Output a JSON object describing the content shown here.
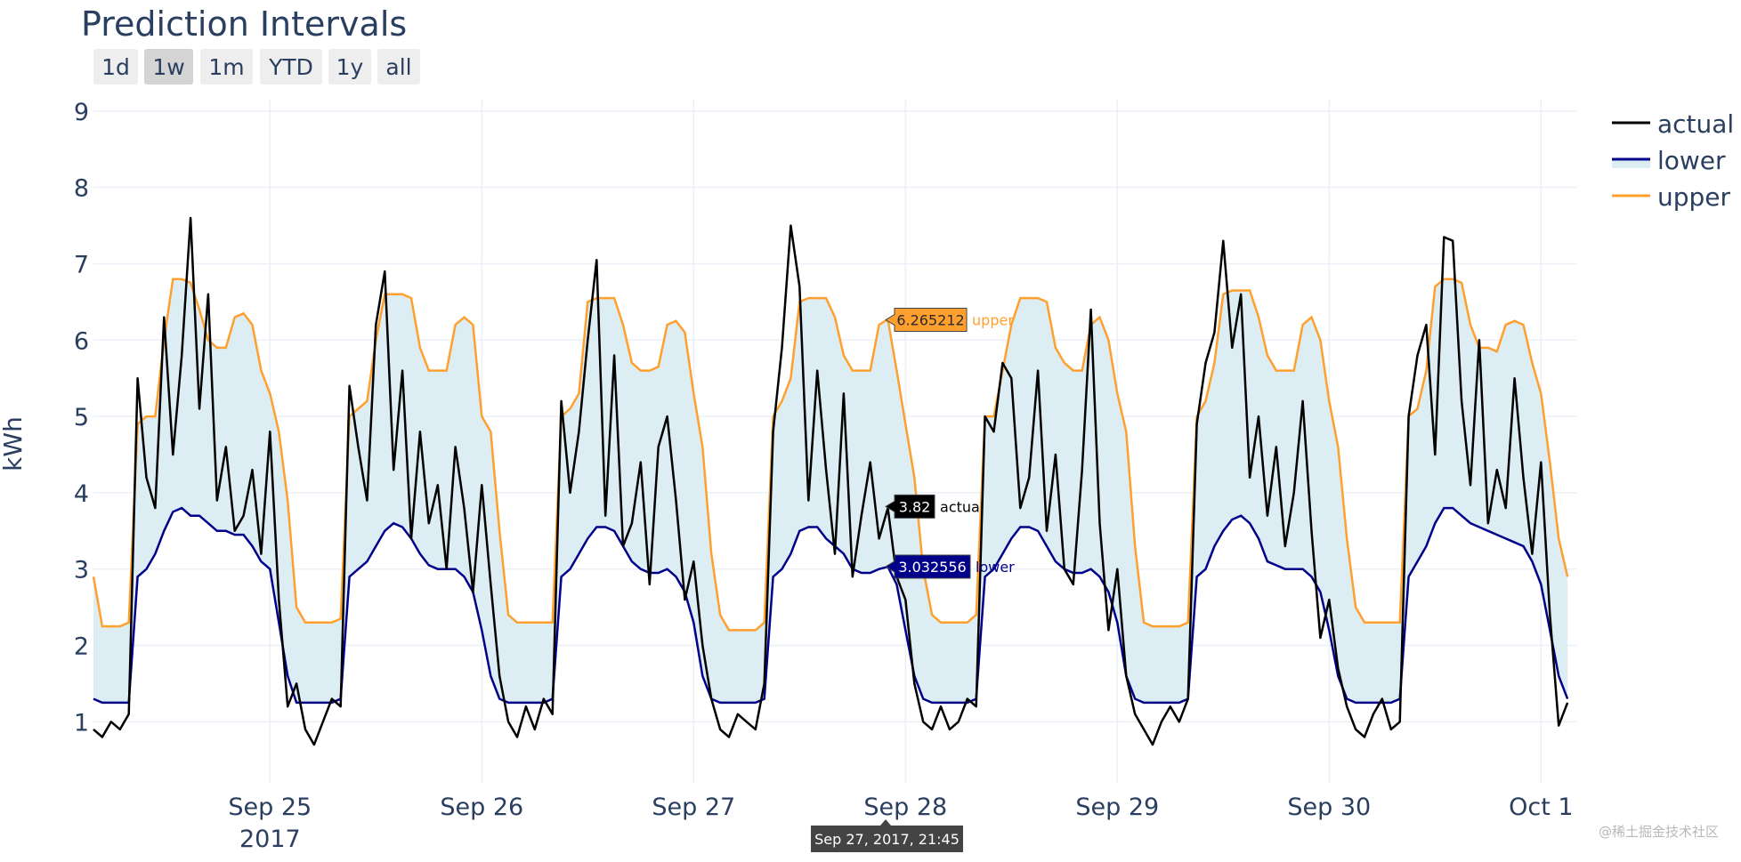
{
  "title": "Prediction Intervals",
  "range_selector": {
    "buttons": [
      {
        "label": "1d",
        "active": false
      },
      {
        "label": "1w",
        "active": true
      },
      {
        "label": "1m",
        "active": false
      },
      {
        "label": "YTD",
        "active": false
      },
      {
        "label": "1y",
        "active": false
      },
      {
        "label": "all",
        "active": false
      }
    ]
  },
  "watermark": "@稀土掘金技术社区",
  "chart_data": {
    "type": "line",
    "title": "Prediction Intervals",
    "xlabel": "",
    "ylabel": "kWh",
    "xrange": [
      "2017-09-24 04:00",
      "2017-10-01 04:00"
    ],
    "ylim": [
      0.2,
      9.15
    ],
    "grid": true,
    "legend_position": "top-right",
    "x_ticks": [
      {
        "date": "2017-09-25",
        "label": "Sep 25",
        "sublabel": "2017"
      },
      {
        "date": "2017-09-26",
        "label": "Sep 26"
      },
      {
        "date": "2017-09-27",
        "label": "Sep 27"
      },
      {
        "date": "2017-09-28",
        "label": "Sep 28"
      },
      {
        "date": "2017-09-29",
        "label": "Sep 29"
      },
      {
        "date": "2017-09-30",
        "label": "Sep 30"
      },
      {
        "date": "2017-10-01",
        "label": "Oct 1"
      }
    ],
    "y_ticks": [
      1,
      2,
      3,
      4,
      5,
      6,
      7,
      8,
      9
    ],
    "series": [
      {
        "name": "actual",
        "color": "#000000"
      },
      {
        "name": "lower",
        "color": "#00008b",
        "fill_to": "upper",
        "fill_color": "#dcedf3"
      },
      {
        "name": "upper",
        "color": "#ffa02e"
      }
    ],
    "days": [
      {
        "date": "2017-09-24",
        "start_hour": 4,
        "actual": [
          0.9,
          0.8,
          1.0,
          0.9,
          1.1,
          5.5,
          4.2,
          3.8,
          6.3,
          4.5,
          5.8,
          7.6,
          5.1,
          6.6,
          3.9,
          4.6,
          3.5,
          3.7,
          4.3,
          3.2
        ],
        "lower": [
          1.3,
          1.25,
          1.25,
          1.25,
          1.25,
          2.9,
          3.0,
          3.2,
          3.5,
          3.75,
          3.8,
          3.7,
          3.7,
          3.6,
          3.5,
          3.5,
          3.45,
          3.45,
          3.3,
          3.1
        ],
        "upper": [
          2.9,
          2.25,
          2.25,
          2.25,
          2.3,
          4.9,
          5.0,
          5.0,
          6.0,
          6.8,
          6.8,
          6.75,
          6.4,
          6.0,
          5.9,
          5.9,
          6.3,
          6.35,
          6.2,
          5.6
        ]
      },
      {
        "date": "2017-09-25",
        "start_hour": 0,
        "actual": [
          4.8,
          2.6,
          1.2,
          1.5,
          0.9,
          0.7,
          1.0,
          1.3,
          1.2,
          5.4,
          4.6,
          3.9,
          6.2,
          6.9,
          4.3,
          5.6,
          3.4,
          4.8,
          3.6,
          4.1,
          3.0,
          4.6,
          3.8,
          2.7
        ],
        "lower": [
          3.0,
          2.3,
          1.6,
          1.25,
          1.25,
          1.25,
          1.25,
          1.25,
          1.3,
          2.9,
          3.0,
          3.1,
          3.3,
          3.5,
          3.6,
          3.55,
          3.4,
          3.2,
          3.05,
          3.0,
          3.0,
          3.0,
          2.9,
          2.7
        ],
        "upper": [
          5.3,
          4.8,
          3.9,
          2.5,
          2.3,
          2.3,
          2.3,
          2.3,
          2.35,
          5.0,
          5.1,
          5.2,
          6.0,
          6.6,
          6.6,
          6.6,
          6.55,
          5.9,
          5.6,
          5.6,
          5.6,
          6.2,
          6.3,
          6.2
        ]
      },
      {
        "date": "2017-09-26",
        "start_hour": 0,
        "actual": [
          4.1,
          2.8,
          1.6,
          1.0,
          0.8,
          1.2,
          0.9,
          1.3,
          1.1,
          5.2,
          4.0,
          4.8,
          6.0,
          7.05,
          3.7,
          5.8,
          3.3,
          3.6,
          4.4,
          2.8,
          4.6,
          5.0,
          3.9,
          2.6
        ],
        "lower": [
          2.2,
          1.6,
          1.3,
          1.25,
          1.25,
          1.25,
          1.25,
          1.25,
          1.3,
          2.9,
          3.0,
          3.2,
          3.4,
          3.55,
          3.55,
          3.5,
          3.3,
          3.1,
          3.0,
          2.95,
          2.95,
          3.0,
          2.9,
          2.7
        ],
        "upper": [
          5.0,
          4.8,
          3.5,
          2.4,
          2.3,
          2.3,
          2.3,
          2.3,
          2.3,
          5.0,
          5.1,
          5.3,
          6.5,
          6.55,
          6.55,
          6.55,
          6.2,
          5.7,
          5.6,
          5.6,
          5.65,
          6.2,
          6.25,
          6.1
        ]
      },
      {
        "date": "2017-09-27",
        "start_hour": 0,
        "actual": [
          3.1,
          2.0,
          1.3,
          0.9,
          0.8,
          1.1,
          1.0,
          0.9,
          1.5,
          4.8,
          5.9,
          7.5,
          6.7,
          3.9,
          5.6,
          4.3,
          3.2,
          5.3,
          2.9,
          3.7,
          4.4,
          3.4,
          3.8,
          2.9
        ],
        "lower": [
          2.3,
          1.6,
          1.3,
          1.25,
          1.25,
          1.25,
          1.25,
          1.25,
          1.3,
          2.9,
          3.0,
          3.2,
          3.5,
          3.55,
          3.55,
          3.4,
          3.3,
          3.2,
          3.0,
          2.95,
          2.95,
          3.0,
          3.03,
          2.8
        ],
        "upper": [
          5.3,
          4.6,
          3.2,
          2.4,
          2.2,
          2.2,
          2.2,
          2.2,
          2.3,
          5.0,
          5.2,
          5.5,
          6.5,
          6.55,
          6.55,
          6.55,
          6.3,
          5.8,
          5.6,
          5.6,
          5.6,
          6.2,
          6.27,
          5.6
        ]
      },
      {
        "date": "2017-09-28",
        "start_hour": 0,
        "actual": [
          2.6,
          1.5,
          1.0,
          0.9,
          1.2,
          0.9,
          1.0,
          1.3,
          1.2,
          5.0,
          4.8,
          5.7,
          5.5,
          3.8,
          4.2,
          5.6,
          3.5,
          4.5,
          3.0,
          2.8,
          4.3,
          6.4,
          3.6,
          2.2
        ],
        "lower": [
          2.2,
          1.6,
          1.3,
          1.25,
          1.25,
          1.25,
          1.25,
          1.25,
          1.3,
          2.9,
          3.0,
          3.2,
          3.4,
          3.55,
          3.55,
          3.5,
          3.3,
          3.1,
          3.0,
          2.95,
          2.95,
          3.0,
          2.9,
          2.7
        ],
        "upper": [
          4.9,
          4.2,
          3.0,
          2.4,
          2.3,
          2.3,
          2.3,
          2.3,
          2.4,
          5.0,
          5.0,
          5.6,
          6.2,
          6.55,
          6.55,
          6.55,
          6.5,
          5.9,
          5.7,
          5.6,
          5.6,
          6.2,
          6.3,
          6.0
        ]
      },
      {
        "date": "2017-09-29",
        "start_hour": 0,
        "actual": [
          3.0,
          1.6,
          1.1,
          0.9,
          0.7,
          1.0,
          1.2,
          1.0,
          1.3,
          4.9,
          5.7,
          6.1,
          7.3,
          5.9,
          6.6,
          4.2,
          5.0,
          3.7,
          4.6,
          3.3,
          4.0,
          5.2,
          3.5,
          2.1
        ],
        "lower": [
          2.3,
          1.6,
          1.3,
          1.25,
          1.25,
          1.25,
          1.25,
          1.25,
          1.3,
          2.9,
          3.0,
          3.3,
          3.5,
          3.65,
          3.7,
          3.6,
          3.4,
          3.1,
          3.05,
          3.0,
          3.0,
          3.0,
          2.9,
          2.7
        ],
        "upper": [
          5.3,
          4.8,
          3.3,
          2.3,
          2.25,
          2.25,
          2.25,
          2.25,
          2.3,
          5.0,
          5.2,
          5.7,
          6.6,
          6.65,
          6.65,
          6.65,
          6.3,
          5.8,
          5.6,
          5.6,
          5.6,
          6.2,
          6.3,
          6.0
        ]
      },
      {
        "date": "2017-09-30",
        "start_hour": 0,
        "actual": [
          2.6,
          1.7,
          1.2,
          0.9,
          0.8,
          1.1,
          1.3,
          0.9,
          1.0,
          5.0,
          5.8,
          6.2,
          4.5,
          7.35,
          7.3,
          5.2,
          4.1,
          6.0,
          3.6,
          4.3,
          3.8,
          5.5,
          4.2,
          3.2
        ],
        "lower": [
          2.2,
          1.6,
          1.3,
          1.25,
          1.25,
          1.25,
          1.25,
          1.25,
          1.3,
          2.9,
          3.1,
          3.3,
          3.6,
          3.8,
          3.8,
          3.7,
          3.6,
          3.55,
          3.5,
          3.45,
          3.4,
          3.35,
          3.3,
          3.1
        ],
        "upper": [
          5.2,
          4.6,
          3.4,
          2.5,
          2.3,
          2.3,
          2.3,
          2.3,
          2.3,
          5.0,
          5.1,
          5.6,
          6.7,
          6.8,
          6.8,
          6.75,
          6.2,
          5.9,
          5.9,
          5.85,
          6.2,
          6.25,
          6.2,
          5.7
        ]
      },
      {
        "date": "2017-10-01",
        "start_hour": 0,
        "actual": [
          4.4,
          2.4,
          0.95,
          1.25
        ],
        "lower": [
          2.8,
          2.2,
          1.6,
          1.3
        ],
        "upper": [
          5.3,
          4.4,
          3.4,
          2.9
        ]
      }
    ],
    "hover": {
      "x_label": "Sep 27, 2017, 21:45",
      "x": "2017-09-27 21:45",
      "values": [
        {
          "series": "upper",
          "value": "6.265212"
        },
        {
          "series": "actual",
          "value": "3.82"
        },
        {
          "series": "lower",
          "value": "3.032556"
        }
      ]
    }
  }
}
